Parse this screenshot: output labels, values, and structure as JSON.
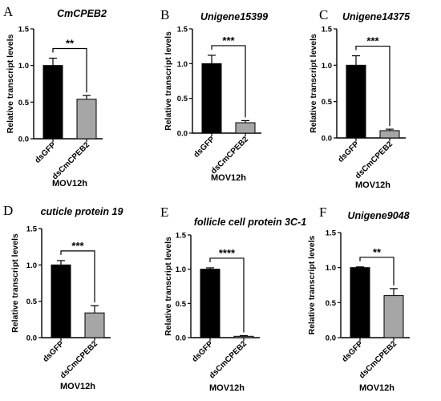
{
  "chart_data": [
    {
      "panel": "A",
      "type": "bar",
      "title": "CmCPEB2",
      "ylabel": "Relative transcript levels",
      "xlabel": "MOV12h",
      "categories": [
        "dsGFP",
        "dsCmCPEB2"
      ],
      "values": [
        1.0,
        0.54
      ],
      "errors": [
        0.1,
        0.05
      ],
      "colors": [
        "#000000",
        "#a6a6a6"
      ],
      "ylim": [
        0,
        1.5
      ],
      "yticks": [
        "0.0",
        "0.5",
        "1.0",
        "1.5"
      ],
      "significance": "**"
    },
    {
      "panel": "B",
      "type": "bar",
      "title": "Unigene15399",
      "ylabel": "Relative transcript levels",
      "xlabel": "MOV12h",
      "categories": [
        "dsGFP",
        "dsCmCPEB2"
      ],
      "values": [
        1.0,
        0.15
      ],
      "errors": [
        0.12,
        0.03
      ],
      "colors": [
        "#000000",
        "#a6a6a6"
      ],
      "ylim": [
        0,
        1.5
      ],
      "yticks": [
        "0.0",
        "0.5",
        "1.0",
        "1.5"
      ],
      "significance": "***"
    },
    {
      "panel": "C",
      "type": "bar",
      "title": "Unigene14375",
      "ylabel": "Relative transcript levels",
      "xlabel": "MOV12h",
      "categories": [
        "dsGFP",
        "dsCmCPEB2"
      ],
      "values": [
        1.0,
        0.1
      ],
      "errors": [
        0.13,
        0.02
      ],
      "colors": [
        "#000000",
        "#a6a6a6"
      ],
      "ylim": [
        0,
        1.5
      ],
      "yticks": [
        "0.0",
        "0.5",
        "1.0",
        "1.5"
      ],
      "significance": "***"
    },
    {
      "panel": "D",
      "type": "bar",
      "title": "cuticle protein 19",
      "ylabel": "Relative transcript levels",
      "xlabel": "MOV12h",
      "categories": [
        "dsGFP",
        "dsCmCPEB2"
      ],
      "values": [
        1.0,
        0.34
      ],
      "errors": [
        0.06,
        0.1
      ],
      "colors": [
        "#000000",
        "#a6a6a6"
      ],
      "ylim": [
        0,
        1.5
      ],
      "yticks": [
        "0.0",
        "0.5",
        "1.0",
        "1.5"
      ],
      "significance": "***"
    },
    {
      "panel": "E",
      "type": "bar",
      "title": "follicle cell protein 3C-1",
      "ylabel": "Relative transcript levels",
      "xlabel": "MOV12h",
      "categories": [
        "dsGFP",
        "dsCmCPEB2"
      ],
      "values": [
        1.0,
        0.02
      ],
      "errors": [
        0.02,
        0.01
      ],
      "colors": [
        "#000000",
        "#a6a6a6"
      ],
      "ylim": [
        0,
        1.5
      ],
      "yticks": [
        "0.0",
        "0.5",
        "1.0",
        "1.5"
      ],
      "significance": "****"
    },
    {
      "panel": "F",
      "type": "bar",
      "title": "Unigene9048",
      "ylabel": "Relative transcript levels",
      "xlabel": "MOV12h",
      "categories": [
        "dsGFP",
        "dsCmCPEB2"
      ],
      "values": [
        1.0,
        0.6
      ],
      "errors": [
        0.01,
        0.1
      ],
      "colors": [
        "#000000",
        "#a6a6a6"
      ],
      "ylim": [
        0,
        1.5
      ],
      "yticks": [
        "0.0",
        "0.5",
        "1.0",
        "1.5"
      ],
      "significance": "**"
    }
  ]
}
